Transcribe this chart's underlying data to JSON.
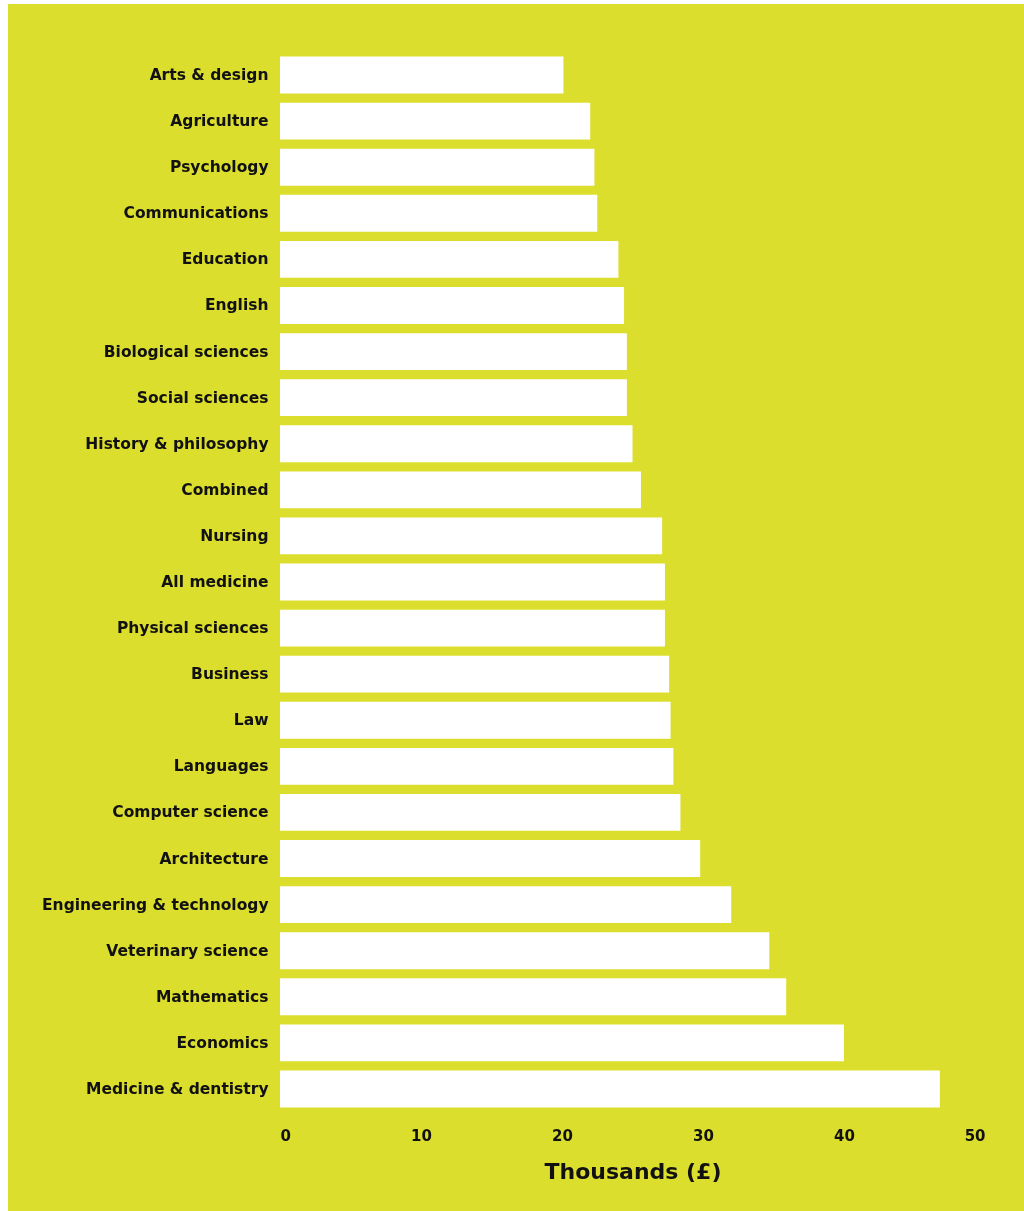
{
  "chart_data": {
    "type": "bar",
    "orientation": "horizontal",
    "xlabel": "Thousands (£)",
    "categories": [
      "Arts & design",
      "Agriculture",
      "Psychology",
      "Communications",
      "Education",
      "English",
      "Biological sciences",
      "Social sciences",
      "History & philosophy",
      "Combined",
      "Nursing",
      "All medicine",
      "Physical sciences",
      "Business",
      "Law",
      "Languages",
      "Computer science",
      "Architecture",
      "Engineering & technology",
      "Veterinary science",
      "Mathematics",
      "Economics",
      "Medicine & dentistry"
    ],
    "values": [
      20.1,
      22.0,
      22.3,
      22.5,
      24.0,
      24.4,
      24.6,
      24.6,
      25.0,
      25.6,
      27.1,
      27.3,
      27.3,
      27.6,
      27.7,
      27.9,
      28.4,
      29.8,
      32.0,
      34.7,
      35.9,
      40.0,
      46.8
    ],
    "color": "#ffffff",
    "xlim": [
      0,
      50
    ],
    "xticks": [
      0,
      10,
      20,
      30,
      40,
      50
    ],
    "grid": false
  }
}
